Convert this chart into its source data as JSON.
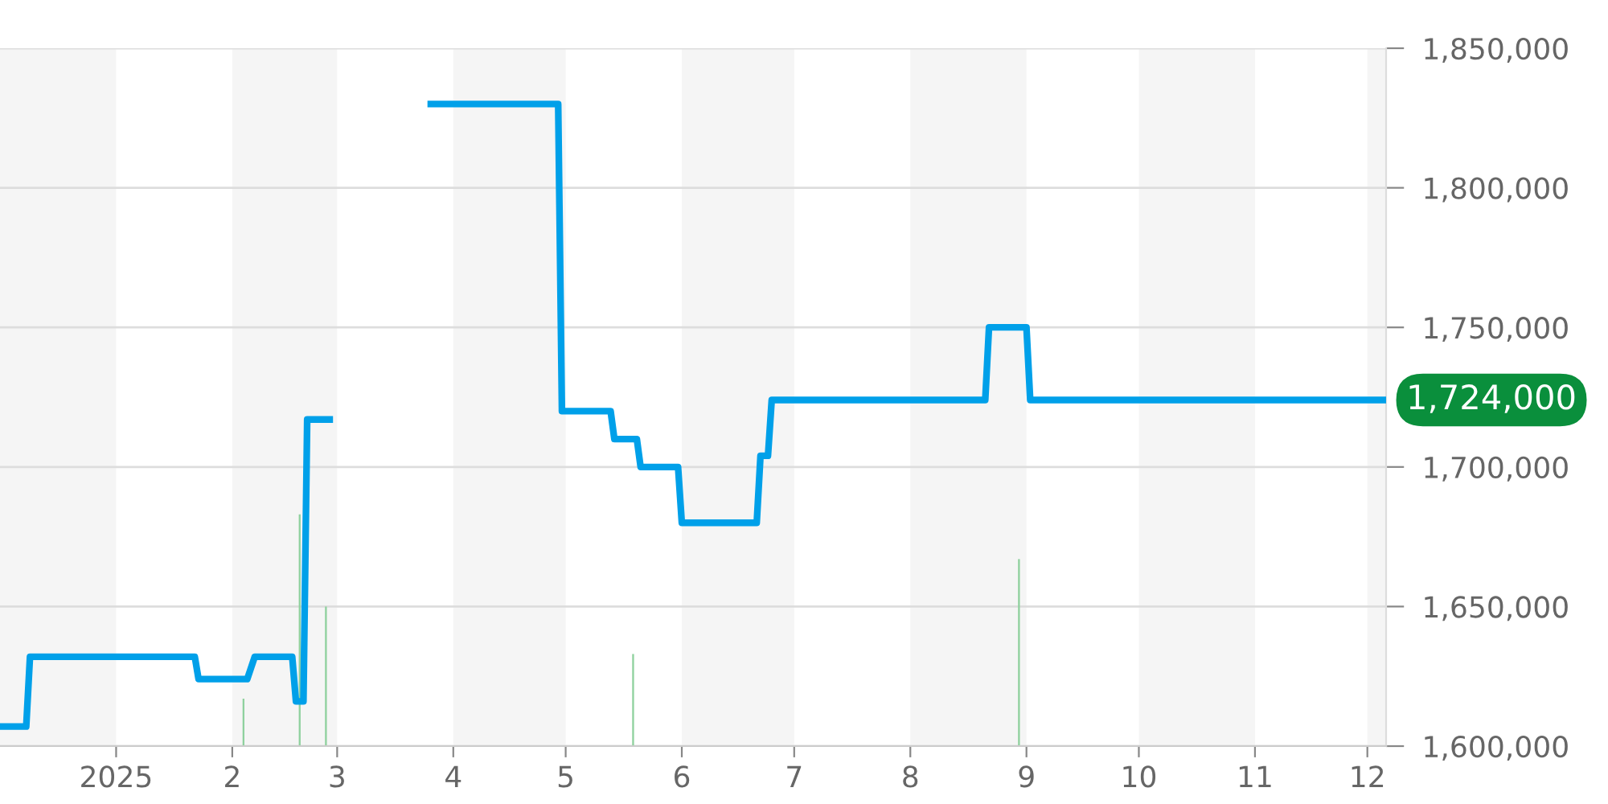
{
  "chart_data": {
    "type": "line",
    "xlim": [
      "2024-12-01",
      "2025-12-06"
    ],
    "ylim": [
      1600000,
      1850000
    ],
    "xticks": [
      {
        "value": "2025-01-01",
        "label": "2025"
      },
      {
        "value": "2025-02-01",
        "label": "2"
      },
      {
        "value": "2025-03-01",
        "label": "3"
      },
      {
        "value": "2025-04-01",
        "label": "4"
      },
      {
        "value": "2025-05-01",
        "label": "5"
      },
      {
        "value": "2025-06-01",
        "label": "6"
      },
      {
        "value": "2025-07-01",
        "label": "7"
      },
      {
        "value": "2025-08-01",
        "label": "8"
      },
      {
        "value": "2025-09-01",
        "label": "9"
      },
      {
        "value": "2025-10-01",
        "label": "10"
      },
      {
        "value": "2025-11-01",
        "label": "11"
      },
      {
        "value": "2025-12-01",
        "label": "12"
      }
    ],
    "yticks": [
      {
        "value": 1600000,
        "label": "1,600,000"
      },
      {
        "value": 1650000,
        "label": "1,650,000"
      },
      {
        "value": 1700000,
        "label": "1,700,000"
      },
      {
        "value": 1750000,
        "label": "1,750,000"
      },
      {
        "value": 1800000,
        "label": "1,800,000"
      },
      {
        "value": 1850000,
        "label": "1,850,000"
      }
    ],
    "grid": "y",
    "marker": "none",
    "line_style": "solid",
    "series": [
      {
        "color": "#00a0e9",
        "x": [
          "2024-12-01",
          "2024-12-08",
          "2024-12-09",
          "2025-01-22",
          "2025-01-23",
          "2025-02-05",
          "2025-02-07",
          "2025-02-17",
          "2025-02-18",
          "2025-02-20",
          "2025-02-21",
          "2025-02-27",
          "2025-03-10",
          "2025-03-26",
          "2025-04-29",
          "2025-04-30",
          "2025-05-13",
          "2025-05-14",
          "2025-05-20",
          "2025-05-21",
          "2025-05-31",
          "2025-06-01",
          "2025-06-21",
          "2025-06-22",
          "2025-06-24",
          "2025-06-25",
          "2025-08-21",
          "2025-08-22",
          "2025-09-01",
          "2025-09-02",
          "2025-12-06"
        ],
        "values": [
          1607000,
          1607000,
          1632000,
          1632000,
          1624000,
          1624000,
          1632000,
          1632000,
          1616000,
          1616000,
          1717000,
          1717000,
          null,
          1830000,
          1830000,
          1720000,
          1720000,
          1710000,
          1710000,
          1700000,
          1700000,
          1680000,
          1680000,
          1704000,
          1704000,
          1724000,
          1724000,
          1750000,
          1750000,
          1724000,
          1724000
        ]
      },
      {
        "type": "bar",
        "color": "#8fd19e",
        "x": [
          "2025-02-04",
          "2025-02-19",
          "2025-02-26",
          "2025-05-19",
          "2025-08-30"
        ],
        "base": [
          1600000,
          1600000,
          1600000,
          1600000,
          1600000
        ],
        "values": [
          17000,
          83000,
          50000,
          33000,
          67000
        ]
      }
    ],
    "bands": [
      {
        "axis": "x",
        "from": "2024-12-01",
        "to": "2025-01-01",
        "color": "#f5f5f5"
      },
      {
        "axis": "x",
        "from": "2025-02-01",
        "to": "2025-03-01",
        "color": "#f5f5f5"
      },
      {
        "axis": "x",
        "from": "2025-04-01",
        "to": "2025-05-01",
        "color": "#f5f5f5"
      },
      {
        "axis": "x",
        "from": "2025-06-01",
        "to": "2025-07-01",
        "color": "#f5f5f5"
      },
      {
        "axis": "x",
        "from": "2025-08-01",
        "to": "2025-09-01",
        "color": "#f5f5f5"
      },
      {
        "axis": "x",
        "from": "2025-10-01",
        "to": "2025-11-01",
        "color": "#f5f5f5"
      },
      {
        "axis": "x",
        "from": "2025-12-01",
        "to": "2025-12-06",
        "color": "#f5f5f5"
      }
    ],
    "annotations": [
      {
        "text": "1,724,000",
        "x": "2025-12-06",
        "y": 1724000
      }
    ]
  }
}
